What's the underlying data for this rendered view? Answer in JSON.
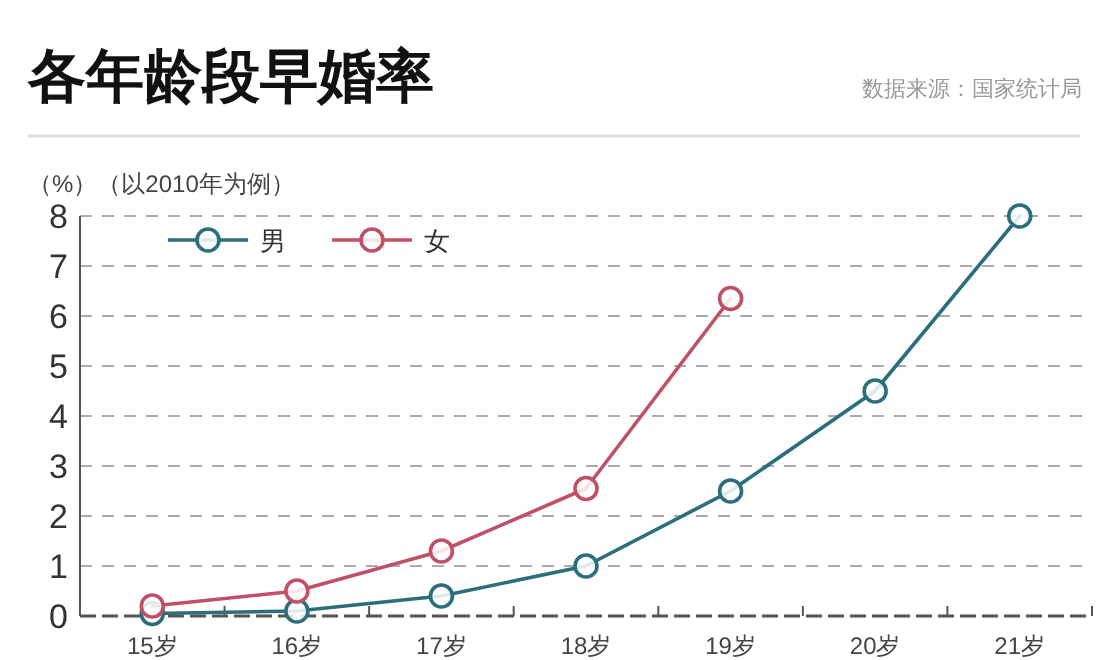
{
  "chart_data": {
    "type": "line",
    "title": "各年龄段早婚率",
    "ylabel": "（%）（以2010年为例）",
    "annotations": [
      "数据来源：国家统计局"
    ],
    "categories": [
      "15岁",
      "16岁",
      "17岁",
      "18岁",
      "19岁",
      "20岁",
      "21岁"
    ],
    "series": [
      {
        "name": "男",
        "color": "#2b6e7c",
        "values": [
          0.05,
          0.1,
          0.4,
          1.0,
          2.5,
          4.5,
          8.0
        ]
      },
      {
        "name": "女",
        "color": "#c05068",
        "values": [
          0.2,
          0.5,
          1.3,
          2.55,
          6.35,
          null,
          null
        ]
      }
    ],
    "ylim": [
      0,
      8
    ],
    "yticks": [
      0,
      1,
      2,
      3,
      4,
      5,
      6,
      7,
      8
    ],
    "grid": "y",
    "legend": "top left",
    "marker": "circle",
    "line_style": "solid"
  }
}
